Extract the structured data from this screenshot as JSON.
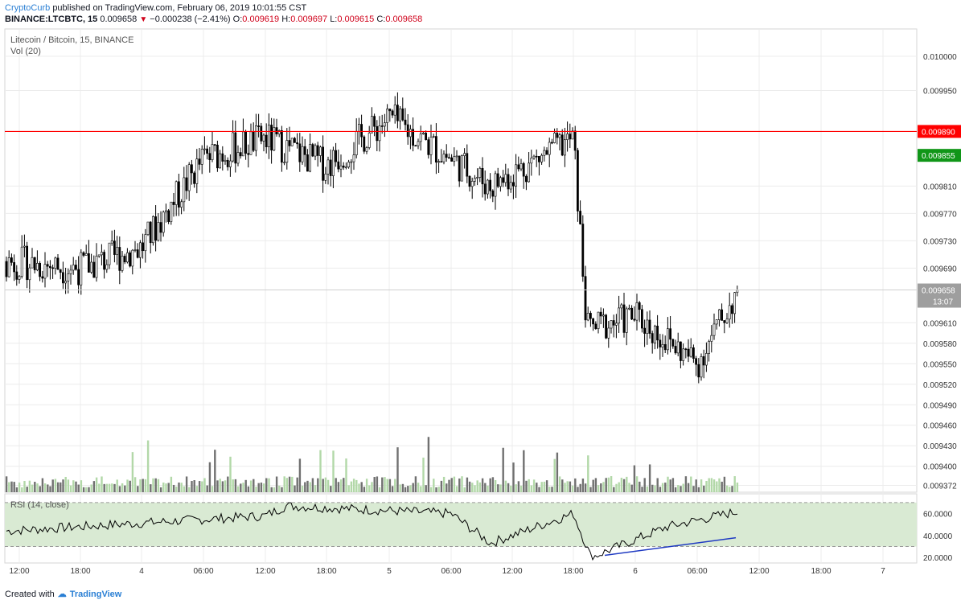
{
  "header": {
    "author": "CryptoCurb",
    "published": "published on TradingView.com, February 06, 2019 10:01:55 CST",
    "symbol": "BINANCE:LTCBTC, 15",
    "last": "0.009658",
    "change": "−0.000238 (−2.41%)",
    "o_label": "O:",
    "o_value": "0.009619",
    "h_label": "H:",
    "h_value": "0.009697",
    "l_label": "L:",
    "l_value": "0.009615",
    "c_label": "C:",
    "c_value": "0.009658"
  },
  "main_pane": {
    "title": "Litecoin / Bitcoin, 15, BINANCE",
    "volume_label": "Vol (20)"
  },
  "rsi_pane": {
    "title": "RSI (14, close)"
  },
  "footer": {
    "created_with": "Created with",
    "brand": "TradingView"
  },
  "colors": {
    "up_candle": "#ffffff",
    "down_candle": "#000000",
    "wick": "#000000",
    "resistance_line": "#ff0000",
    "price_tag_red": "#ff0000",
    "price_tag_green": "#109618",
    "rsi_band": "#d9ead3",
    "rsi_line": "#000000",
    "divergence_line": "#1f3ac2",
    "vol_up": "#b2d8a8",
    "vol_down": "#707070",
    "last_price_tag": "#9e9e9e"
  },
  "chart_data": [
    {
      "type": "candlestick",
      "price_axis_ticks": [
        "0.010000",
        "0.009950",
        "0.009890",
        "0.009855",
        "0.009810",
        "0.009770",
        "0.009730",
        "0.009690",
        "0.009658",
        "0.009610",
        "0.009580",
        "0.009550",
        "0.009520",
        "0.009490",
        "0.009460",
        "0.009430",
        "0.009400",
        "0.009372"
      ],
      "ylim": [
        0.009362,
        0.01004
      ],
      "time_axis_ticks": [
        "12:00",
        "18:00",
        "4",
        "06:00",
        "12:00",
        "18:00",
        "5",
        "06:00",
        "12:00",
        "18:00",
        "6",
        "06:00",
        "12:00",
        "18:00",
        "7"
      ],
      "resistance_level": 0.00989,
      "resistance_label": "0.009890",
      "green_price_label": "0.009855",
      "last_price_label": "0.009658",
      "countdown_label": "13:07",
      "ohlc_anchor_points": [
        {
          "t": "Feb 3 12:00",
          "close": 0.0097
        },
        {
          "t": "Feb 3 18:00",
          "close": 0.00969
        },
        {
          "t": "Feb 4 00:00",
          "close": 0.00972
        },
        {
          "t": "Feb 4 06:00",
          "close": 0.00985
        },
        {
          "t": "Feb 4 12:00",
          "close": 0.00988
        },
        {
          "t": "Feb 4 18:00",
          "close": 0.00984
        },
        {
          "t": "Feb 5 00:00",
          "close": 0.00991
        },
        {
          "t": "Feb 5 06:00",
          "close": 0.00985
        },
        {
          "t": "Feb 5 12:00",
          "close": 0.00981
        },
        {
          "t": "Feb 5 18:00",
          "close": 0.00988
        },
        {
          "t": "Feb 5 21:00",
          "close": 0.0096
        },
        {
          "t": "Feb 6 00:00",
          "close": 0.00962
        },
        {
          "t": "Feb 6 06:00",
          "close": 0.00955
        },
        {
          "t": "Feb 6 10:00",
          "close": 0.009658
        }
      ]
    },
    {
      "type": "bar",
      "name": "Vol (20)"
    },
    {
      "type": "line",
      "name": "RSI (14, close)",
      "y_ticks": [
        "60.0000",
        "40.0000",
        "20.0000"
      ],
      "ylim": [
        15,
        78
      ],
      "band": [
        30,
        70
      ],
      "anchor_points": [
        {
          "t": "Feb 3 12:00",
          "rsi": 44
        },
        {
          "t": "Feb 4 12:00",
          "rsi": 58
        },
        {
          "t": "Feb 4 14:00",
          "rsi": 67
        },
        {
          "t": "Feb 5 06:00",
          "rsi": 60
        },
        {
          "t": "Feb 5 12:00",
          "rsi": 33
        },
        {
          "t": "Feb 5 18:00",
          "rsi": 60
        },
        {
          "t": "Feb 5 22:00",
          "rsi": 20
        },
        {
          "t": "Feb 6 04:00",
          "rsi": 48
        },
        {
          "t": "Feb 6 10:00",
          "rsi": 62
        }
      ]
    }
  ]
}
